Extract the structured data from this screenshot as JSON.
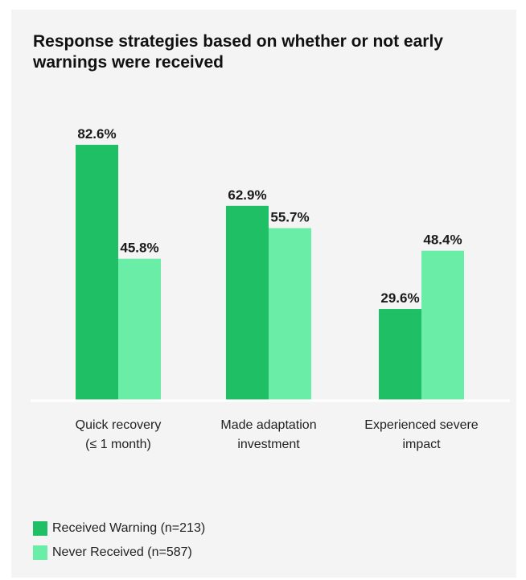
{
  "colors": {
    "received": "#1fbf66",
    "never": "#6aeda6",
    "baseline": "#ffffff",
    "card": "#f4f4f4",
    "text": "#1a1a1a"
  },
  "chart_data": {
    "type": "bar",
    "title": "Response strategies based on whether or not early warnings were received",
    "categories": [
      [
        "Quick recovery",
        "(≤ 1 month)"
      ],
      [
        "Made adaptation",
        "investment"
      ],
      [
        "Experienced severe",
        "impact"
      ]
    ],
    "series": [
      {
        "name": "Received Warning (n=213)",
        "values": [
          82.6,
          62.9,
          29.6
        ],
        "labels": [
          "82.6%",
          "62.9%",
          "29.6%"
        ]
      },
      {
        "name": "Never Received (n=587)",
        "values": [
          45.8,
          55.7,
          48.4
        ],
        "labels": [
          "45.8%",
          "55.7%",
          "48.4%"
        ]
      }
    ],
    "ylim": [
      0,
      100
    ],
    "grid": false,
    "legend_position": "bottom-left"
  }
}
